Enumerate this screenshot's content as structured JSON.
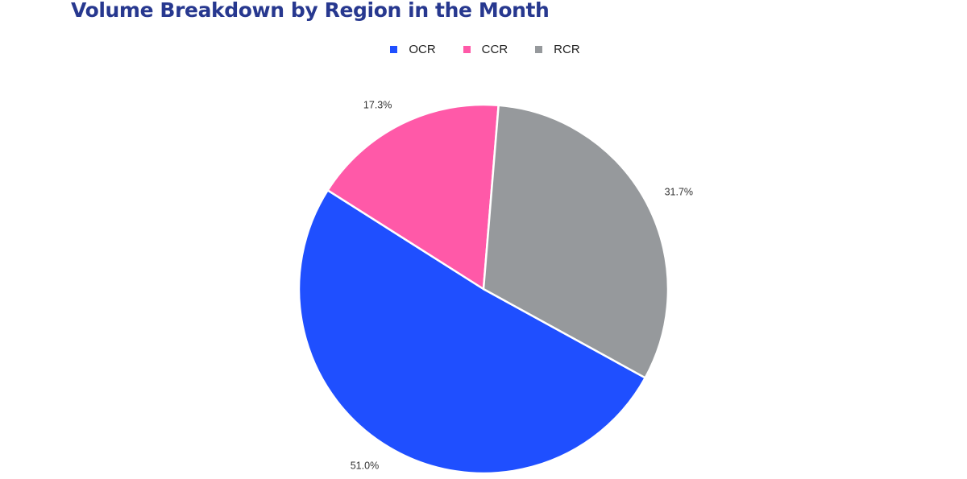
{
  "title": "Volume Breakdown by Region in the Month",
  "colors": {
    "title": "#27388f",
    "OCR": "#1f4fff",
    "CCR": "#ff59a8",
    "RCR": "#96999c"
  },
  "legend": {
    "placement": "top-center",
    "items": [
      {
        "label": "OCR",
        "color": "#1f4fff"
      },
      {
        "label": "CCR",
        "color": "#ff59a8"
      },
      {
        "label": "RCR",
        "color": "#96999c"
      }
    ]
  },
  "chart_data": {
    "type": "pie",
    "title": "Volume Breakdown by Region in the Month",
    "slices": [
      {
        "label": "OCR",
        "value": 51.0,
        "display": "51.0%",
        "color": "#1f4fff"
      },
      {
        "label": "CCR",
        "value": 17.3,
        "display": "17.3%",
        "color": "#ff59a8"
      },
      {
        "label": "RCR",
        "value": 31.7,
        "display": "31.7%",
        "color": "#96999c"
      }
    ],
    "legend": "top-center"
  }
}
